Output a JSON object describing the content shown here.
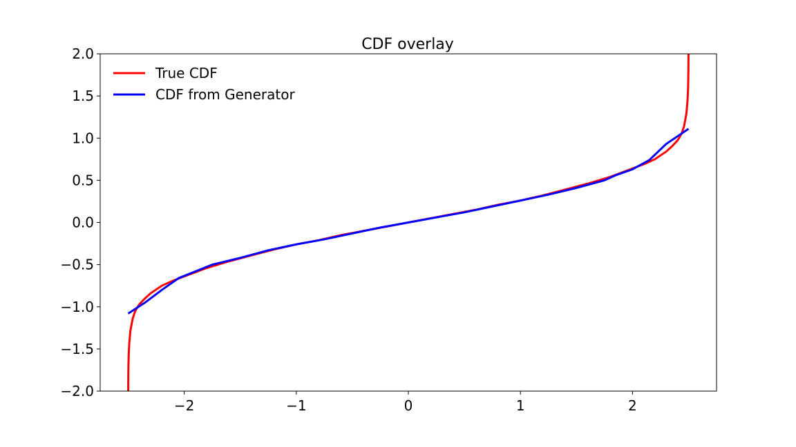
{
  "chart_data": {
    "type": "line",
    "title": "CDF overlay",
    "xlabel": "",
    "ylabel": "",
    "xlim": [
      -2.75,
      2.75
    ],
    "ylim": [
      -2.0,
      2.0
    ],
    "xticks": [
      -2,
      -1,
      0,
      1,
      2
    ],
    "xtick_labels": [
      "−2",
      "−1",
      "0",
      "1",
      "2"
    ],
    "yticks": [
      -2.0,
      -1.5,
      -1.0,
      -0.5,
      0.0,
      0.5,
      1.0,
      1.5,
      2.0
    ],
    "ytick_labels": [
      "−2.0",
      "−1.5",
      "−1.0",
      "−0.5",
      "0.0",
      "0.5",
      "1.0",
      "1.5",
      "2.0"
    ],
    "grid": false,
    "legend_position": "upper-left",
    "series": [
      {
        "name": "True CDF",
        "color": "#ff0000",
        "x": [
          -2.5,
          -2.499,
          -2.498,
          -2.495,
          -2.49,
          -2.48,
          -2.46,
          -2.44,
          -2.42,
          -2.4,
          -2.35,
          -2.3,
          -2.2,
          -2.1,
          -2.0,
          -1.8,
          -1.6,
          -1.4,
          -1.2,
          -1.0,
          -0.8,
          -0.6,
          -0.4,
          -0.2,
          0.0,
          0.2,
          0.4,
          0.6,
          0.8,
          1.0,
          1.2,
          1.4,
          1.6,
          1.8,
          2.0,
          2.1,
          2.2,
          2.3,
          2.35,
          2.4,
          2.42,
          2.44,
          2.46,
          2.48,
          2.49,
          2.495,
          2.498,
          2.499,
          2.5
        ],
        "y": [
          -2.0,
          -1.8,
          -1.7,
          -1.55,
          -1.42,
          -1.28,
          -1.14,
          -1.06,
          -1.01,
          -0.97,
          -0.9,
          -0.84,
          -0.75,
          -0.69,
          -0.64,
          -0.54,
          -0.46,
          -0.39,
          -0.32,
          -0.26,
          -0.21,
          -0.15,
          -0.1,
          -0.05,
          0.0,
          0.05,
          0.1,
          0.15,
          0.21,
          0.26,
          0.32,
          0.39,
          0.46,
          0.54,
          0.64,
          0.69,
          0.75,
          0.84,
          0.9,
          0.97,
          1.01,
          1.06,
          1.14,
          1.28,
          1.42,
          1.55,
          1.7,
          1.8,
          2.0
        ]
      },
      {
        "name": "CDF from Generator",
        "color": "#0000ff",
        "x": [
          -2.5,
          -2.35,
          -2.2,
          -2.05,
          -1.9,
          -1.75,
          -1.5,
          -1.25,
          -1.0,
          -0.75,
          -0.5,
          -0.25,
          0.0,
          0.25,
          0.5,
          0.75,
          1.0,
          1.25,
          1.5,
          1.75,
          1.85,
          2.0,
          2.15,
          2.3,
          2.5
        ],
        "y": [
          -1.08,
          -0.95,
          -0.8,
          -0.66,
          -0.58,
          -0.5,
          -0.42,
          -0.33,
          -0.26,
          -0.2,
          -0.13,
          -0.06,
          0.0,
          0.06,
          0.12,
          0.19,
          0.26,
          0.33,
          0.41,
          0.5,
          0.56,
          0.63,
          0.74,
          0.93,
          1.11
        ]
      }
    ]
  }
}
